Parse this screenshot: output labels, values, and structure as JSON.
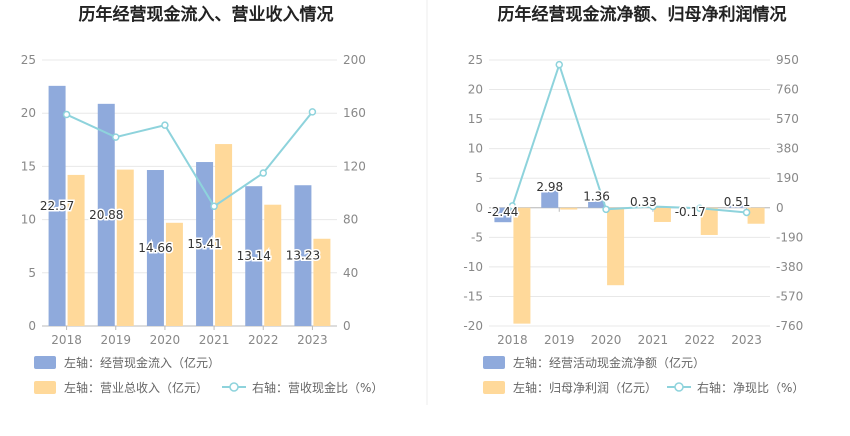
{
  "chart_data": [
    {
      "type": "bar",
      "title": "历年经营现金流入、营业收入情况",
      "categories": [
        "2018",
        "2019",
        "2020",
        "2021",
        "2022",
        "2023"
      ],
      "left_axis": {
        "min": 0,
        "max": 25,
        "ticks": [
          "0",
          "5",
          "10",
          "15",
          "20",
          "25"
        ]
      },
      "right_axis": {
        "min": 0,
        "max": 200,
        "ticks": [
          "0",
          "40",
          "80",
          "120",
          "160",
          "200"
        ]
      },
      "series": [
        {
          "name": "左轴：经营现金流入（亿元）",
          "type": "bar",
          "axis": "left",
          "color": "#8faadc",
          "values": [
            22.57,
            20.88,
            14.66,
            15.41,
            13.14,
            13.23
          ],
          "labels": [
            "22.57",
            "20.88",
            "14.66",
            "15.41",
            "13.14",
            "13.23"
          ]
        },
        {
          "name": "左轴：营业总收入（亿元）",
          "type": "bar",
          "axis": "left",
          "color": "#ffd99a",
          "values": [
            14.2,
            14.7,
            9.7,
            17.1,
            11.4,
            8.2
          ]
        },
        {
          "name": "右轴：营收现金比（%）",
          "type": "line",
          "axis": "right",
          "color": "#8ed3dc",
          "values": [
            159,
            142,
            151,
            90,
            115,
            161
          ]
        }
      ]
    },
    {
      "type": "bar",
      "title": "历年经营现金流净额、归母净利润情况",
      "categories": [
        "2018",
        "2019",
        "2020",
        "2021",
        "2022",
        "2023"
      ],
      "left_axis": {
        "min": -20,
        "max": 25,
        "ticks": [
          "-20",
          "-15",
          "-10",
          "-5",
          "0",
          "5",
          "10",
          "15",
          "20",
          "25"
        ]
      },
      "right_axis": {
        "min": -760,
        "max": 950,
        "ticks": [
          "-760",
          "-570",
          "-380",
          "-190",
          "0",
          "190",
          "380",
          "570",
          "760",
          "950"
        ]
      },
      "series": [
        {
          "name": "左轴：经营活动现金流净额（亿元）",
          "type": "bar",
          "axis": "left",
          "color": "#8faadc",
          "values": [
            -2.44,
            2.98,
            1.36,
            0.33,
            -0.17,
            0.51
          ],
          "labels": [
            "-2.44",
            "2.98",
            "1.36",
            "0.33",
            "-0.17",
            "0.51"
          ]
        },
        {
          "name": "左轴：归母净利润（亿元）",
          "type": "bar",
          "axis": "left",
          "color": "#ffd99a",
          "values": [
            -19.6,
            -0.3,
            -13.1,
            -2.4,
            -4.6,
            -2.7
          ]
        },
        {
          "name": "右轴：净现比（%）",
          "type": "line",
          "axis": "right",
          "color": "#8ed3dc",
          "values": [
            12,
            920,
            -10,
            8,
            -3,
            -30
          ]
        }
      ]
    }
  ]
}
